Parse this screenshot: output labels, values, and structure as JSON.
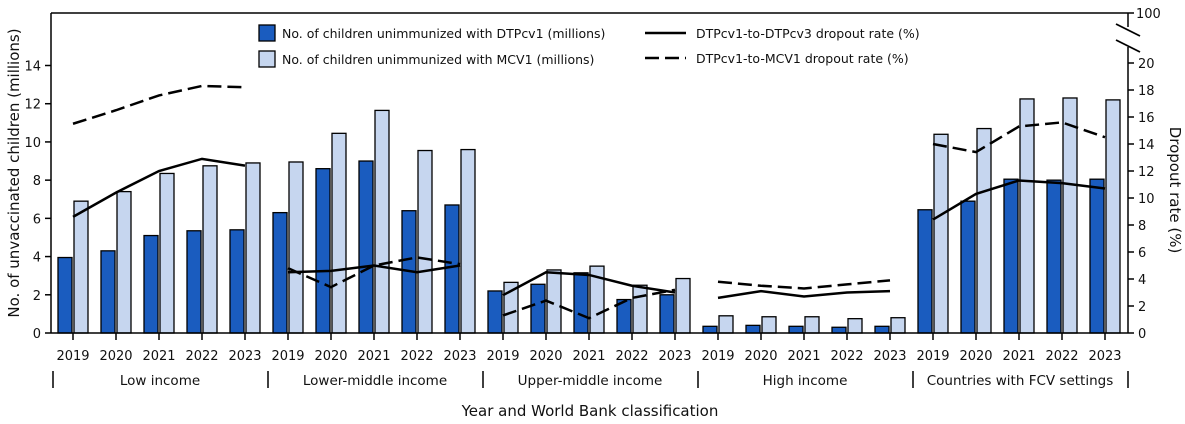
{
  "chart_data": {
    "type": "bar",
    "title": "",
    "xlabel": "Year and World Bank classification",
    "ylabel": "No. of unvaccinated children (millions)",
    "y2label": "Dropout rate (%)",
    "ylim": [
      0,
      14
    ],
    "yticks": [
      0,
      2,
      4,
      6,
      8,
      10,
      12,
      14
    ],
    "y2lim": [
      0,
      20
    ],
    "y2ticks": [
      0,
      2,
      4,
      6,
      8,
      10,
      12,
      14,
      16,
      18,
      20
    ],
    "y2_break_top_label": "100",
    "years": [
      "2019",
      "2020",
      "2021",
      "2022",
      "2023"
    ],
    "groups": [
      {
        "name": "Low income",
        "dtpcv1": [
          3.95,
          4.3,
          5.1,
          5.35,
          5.4
        ],
        "mcv1": [
          6.9,
          7.4,
          8.35,
          8.75,
          8.9
        ],
        "dtp1_dtp3_dropout": [
          8.6,
          10.4,
          12.0,
          12.9,
          12.4
        ],
        "dtp1_mcv1_dropout": [
          15.5,
          16.5,
          17.6,
          18.3,
          18.2
        ]
      },
      {
        "name": "Lower-middle income",
        "dtpcv1": [
          6.3,
          8.6,
          9.0,
          6.4,
          6.7
        ],
        "mcv1": [
          8.95,
          10.45,
          11.65,
          9.55,
          9.6
        ],
        "dtp1_dtp3_dropout": [
          4.5,
          4.6,
          5.0,
          4.5,
          5.0
        ],
        "dtp1_mcv1_dropout": [
          4.8,
          3.4,
          5.0,
          5.6,
          5.1
        ]
      },
      {
        "name": "Upper-middle income",
        "dtpcv1": [
          2.2,
          2.55,
          3.15,
          1.75,
          2.0
        ],
        "mcv1": [
          2.65,
          3.3,
          3.5,
          2.5,
          2.85
        ],
        "dtp1_dtp3_dropout": [
          2.8,
          4.5,
          4.3,
          3.5,
          3.0
        ],
        "dtp1_mcv1_dropout": [
          1.3,
          2.4,
          1.1,
          2.6,
          3.2
        ]
      },
      {
        "name": "High income",
        "dtpcv1": [
          0.35,
          0.4,
          0.35,
          0.3,
          0.35
        ],
        "mcv1": [
          0.9,
          0.85,
          0.85,
          0.75,
          0.8
        ],
        "dtp1_dtp3_dropout": [
          2.6,
          3.1,
          2.7,
          3.0,
          3.1
        ],
        "dtp1_mcv1_dropout": [
          3.8,
          3.5,
          3.3,
          3.6,
          3.9
        ]
      },
      {
        "name": "Countries with FCV settings",
        "dtpcv1": [
          6.45,
          6.9,
          8.05,
          8.0,
          8.05
        ],
        "mcv1": [
          10.4,
          10.7,
          12.25,
          12.3,
          12.2
        ],
        "dtp1_dtp3_dropout": [
          8.4,
          10.3,
          11.3,
          11.1,
          10.7
        ],
        "dtp1_mcv1_dropout": [
          14.0,
          13.4,
          15.3,
          15.6,
          14.5
        ]
      }
    ],
    "legend": {
      "placement": "top-center",
      "dtpcv1": "No. of children unimmunized with DTPcv1 (millions)",
      "mcv1": "No. of children unimmunized with MCV1 (millions)",
      "solid": "DTPcv1-to-DTPcv3 dropout rate (%)",
      "dashed": "DTPcv1-to-MCV1 dropout rate (%)"
    },
    "colors": {
      "dtpcv1": "#1a5cbf",
      "mcv1": "#c6d6ef",
      "lines": "#000000"
    },
    "grid": false
  }
}
